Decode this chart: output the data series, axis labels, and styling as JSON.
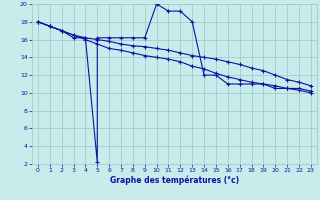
{
  "xlabel": "Graphe des températures (°c)",
  "background_color": "#c8ecec",
  "grid_color": "#a0cccc",
  "line_color": "#1010a0",
  "xlim": [
    0,
    23
  ],
  "ylim": [
    2,
    20
  ],
  "xticks": [
    0,
    1,
    2,
    3,
    4,
    5,
    6,
    7,
    8,
    9,
    10,
    11,
    12,
    13,
    14,
    15,
    16,
    17,
    18,
    19,
    20,
    21,
    22,
    23
  ],
  "yticks": [
    2,
    4,
    6,
    8,
    10,
    12,
    14,
    16,
    18,
    20
  ],
  "series1_x": [
    0,
    1,
    2,
    3,
    4,
    5,
    5,
    6,
    7,
    8,
    9,
    10,
    11,
    12,
    13,
    14,
    15,
    16,
    17,
    18,
    19,
    20,
    21,
    22,
    23
  ],
  "series1_y": [
    18.0,
    17.5,
    17.0,
    16.2,
    16.2,
    2.2,
    16.2,
    16.2,
    16.2,
    16.2,
    16.2,
    20.0,
    19.2,
    19.2,
    18.0,
    12.0,
    12.0,
    11.0,
    11.0,
    11.0,
    11.0,
    10.5,
    10.5,
    10.5,
    10.2
  ],
  "series2_x": [
    0,
    1,
    2,
    3,
    4,
    5,
    6,
    7,
    8,
    9,
    10,
    11,
    12,
    13,
    14,
    15,
    16,
    17,
    18,
    19,
    20,
    21,
    22,
    23
  ],
  "series2_y": [
    18.0,
    17.5,
    17.0,
    16.5,
    16.2,
    16.0,
    15.8,
    15.5,
    15.3,
    15.2,
    15.0,
    14.8,
    14.5,
    14.2,
    14.0,
    13.8,
    13.5,
    13.2,
    12.8,
    12.5,
    12.0,
    11.5,
    11.2,
    10.8
  ],
  "series3_x": [
    0,
    1,
    2,
    3,
    4,
    5,
    6,
    7,
    8,
    9,
    10,
    11,
    12,
    13,
    14,
    15,
    16,
    17,
    18,
    19,
    20,
    21,
    22,
    23
  ],
  "series3_y": [
    18.0,
    17.5,
    17.0,
    16.5,
    16.0,
    15.5,
    15.0,
    14.8,
    14.5,
    14.2,
    14.0,
    13.8,
    13.5,
    13.0,
    12.7,
    12.2,
    11.8,
    11.5,
    11.2,
    11.0,
    10.8,
    10.5,
    10.3,
    10.0
  ]
}
